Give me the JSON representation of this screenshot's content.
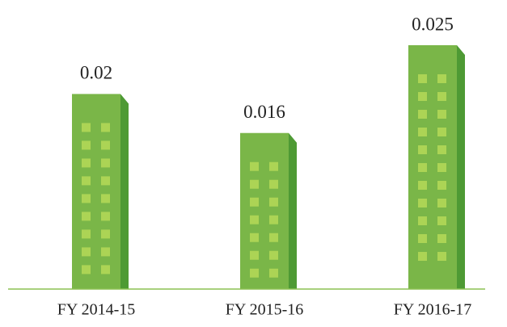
{
  "chart_data": {
    "type": "bar",
    "categories": [
      "FY 2014-15",
      "FY 2015-16",
      "FY 2016-17"
    ],
    "values": [
      0.02,
      0.016,
      0.025
    ],
    "color": "#7ab648"
  }
}
